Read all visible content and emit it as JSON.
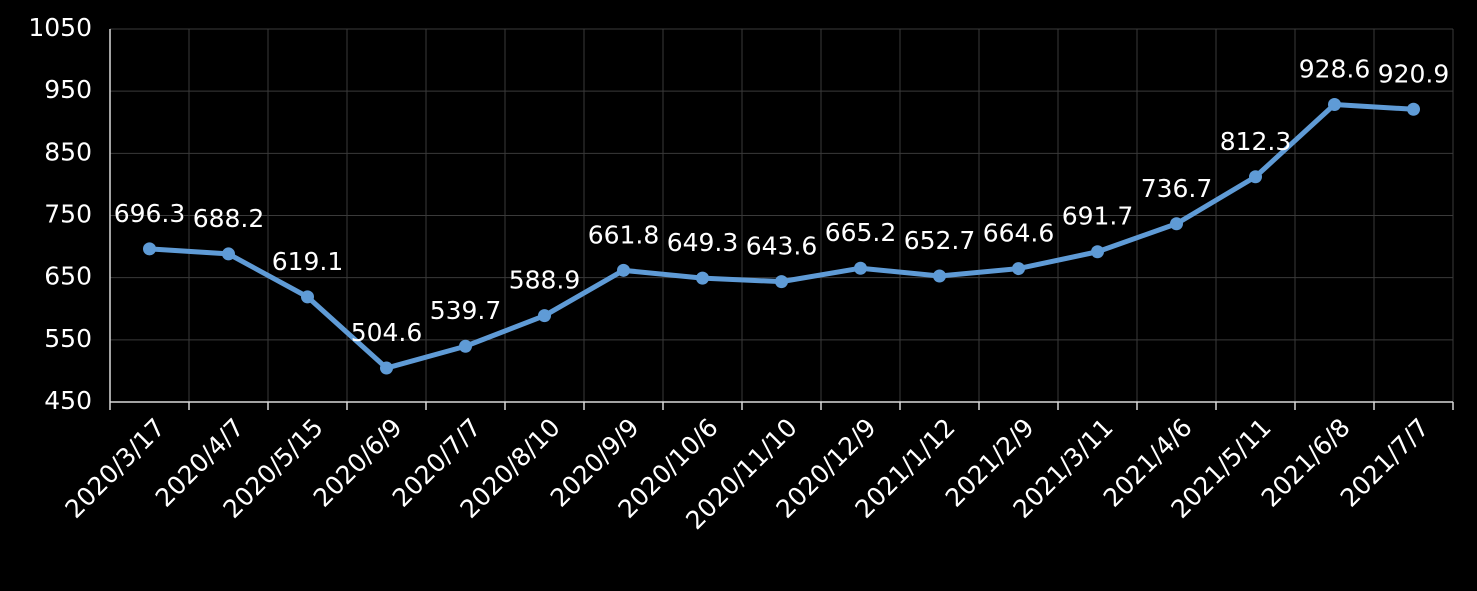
{
  "chart_data": {
    "type": "line",
    "categories": [
      "2020/3/17",
      "2020/4/7",
      "2020/5/15",
      "2020/6/9",
      "2020/7/7",
      "2020/8/10",
      "2020/9/9",
      "2020/10/6",
      "2020/11/10",
      "2020/12/9",
      "2021/1/12",
      "2021/2/9",
      "2021/3/11",
      "2021/4/6",
      "2021/5/11",
      "2021/6/8",
      "2021/7/7"
    ],
    "values": [
      696.3,
      688.2,
      619.1,
      504.6,
      539.7,
      588.9,
      661.8,
      649.3,
      643.6,
      665.2,
      652.7,
      664.6,
      691.7,
      736.7,
      812.3,
      928.6,
      920.9
    ],
    "color": "#5f9bd6",
    "ylim": [
      450,
      1050
    ],
    "yticks": [
      450,
      550,
      650,
      750,
      850,
      950,
      1050
    ],
    "grid": true
  }
}
